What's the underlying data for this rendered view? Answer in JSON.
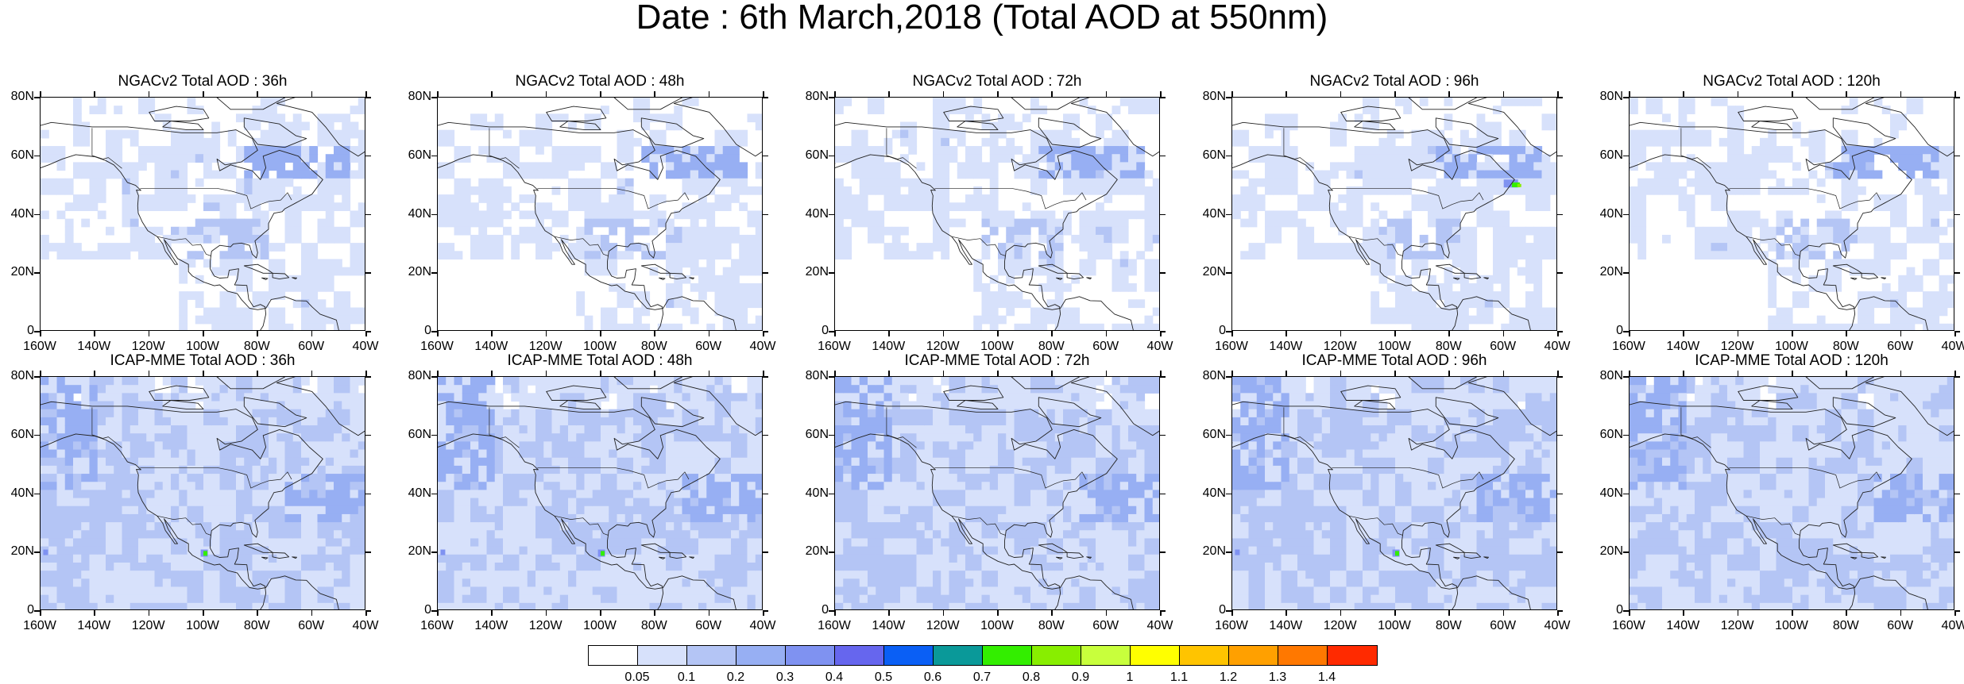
{
  "title": "Date : 6th March,2018 (Total AOD at 550nm)",
  "rows": [
    {
      "model": "NGACv2",
      "panels": [
        {
          "title": "NGACv2 Total AOD : 36h"
        },
        {
          "title": "NGACv2 Total AOD : 48h"
        },
        {
          "title": "NGACv2 Total AOD : 72h"
        },
        {
          "title": "NGACv2 Total AOD : 96h",
          "hotspot": "green-plume-east-coast"
        },
        {
          "title": "NGACv2 Total AOD : 120h"
        }
      ]
    },
    {
      "model": "ICAP-MME",
      "panels": [
        {
          "title": "ICAP-MME Total AOD : 36h",
          "hotspot": "green-spot-mexico"
        },
        {
          "title": "ICAP-MME Total AOD : 48h",
          "hotspot": "green-spot-mexico"
        },
        {
          "title": "ICAP-MME Total AOD : 72h"
        },
        {
          "title": "ICAP-MME Total AOD : 96h",
          "hotspot": "green-spot-mexico"
        },
        {
          "title": "ICAP-MME Total AOD : 120h"
        }
      ]
    }
  ],
  "axes": {
    "lat_ticks": [
      "80N",
      "60N",
      "40N",
      "20N",
      "0"
    ],
    "lon_ticks": [
      "160W",
      "140W",
      "120W",
      "100W",
      "80W",
      "60W",
      "40W"
    ],
    "lat_range": [
      0,
      80
    ],
    "lon_range": [
      -160,
      -40
    ]
  },
  "colorbar": {
    "colors": [
      "#ffffff",
      "#d7e1fb",
      "#b4c5f5",
      "#97aff3",
      "#7f92f1",
      "#6666ee",
      "#0a5ff5",
      "#0a9999",
      "#33ee00",
      "#88ee00",
      "#c8ff3c",
      "#ffff00",
      "#ffc400",
      "#ffa000",
      "#ff7800",
      "#ff2a00"
    ],
    "labels": [
      "0.05",
      "0.1",
      "0.2",
      "0.3",
      "0.4",
      "0.5",
      "0.6",
      "0.7",
      "0.8",
      "0.9",
      "1",
      "1.1",
      "1.2",
      "1.3",
      "1.4"
    ]
  }
}
